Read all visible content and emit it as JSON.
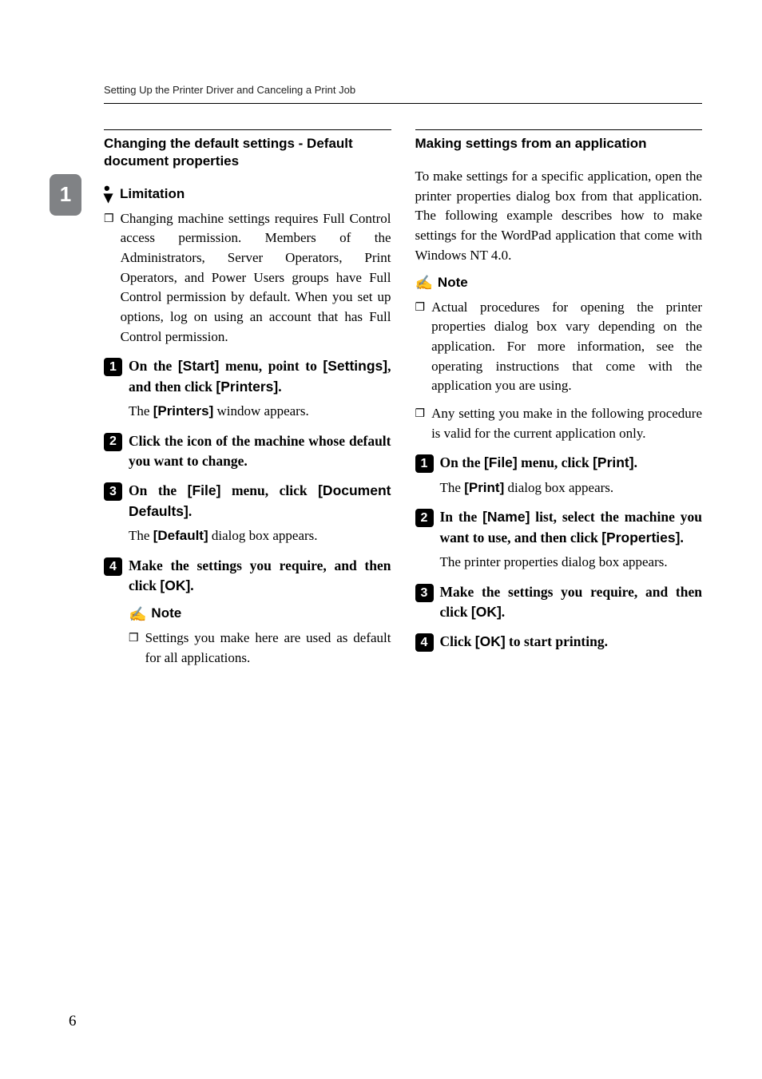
{
  "runningHead": "Setting Up the Printer Driver and Canceling a Print Job",
  "chapterTab": "1",
  "pageNumber": "6",
  "left": {
    "sectionHead": "Changing the default settings - Default document properties",
    "limitation": {
      "label": "Limitation",
      "bullet": "Changing machine settings requires Full Control access permission. Members of the Administrators, Server Operators, Print Operators, and Power Users groups have Full Control permission by default. When you set up options, log on using an account that has Full Control permission."
    },
    "steps": [
      {
        "num": "1",
        "pre1": "On the ",
        "ui1": "[Start]",
        "mid1": " menu, point to ",
        "ui2": "[Settings]",
        "mid2": ", and then click ",
        "ui3": "[Printers]",
        "post": ".",
        "resultPre": "The ",
        "resultUi": "[Printers]",
        "resultPost": " window appears."
      },
      {
        "num": "2",
        "text": "Click the icon of the machine whose default you want to change."
      },
      {
        "num": "3",
        "pre1": "On the ",
        "ui1": "[File]",
        "mid1": " menu, click ",
        "ui2": "[Document Defaults]",
        "post": ".",
        "resultPre": "The ",
        "resultUi": "[Default]",
        "resultPost": " dialog box appears."
      },
      {
        "num": "4",
        "pre1": "Make the settings you require, and then click ",
        "ui1": "[OK]",
        "post": "."
      }
    ],
    "note": {
      "label": "Note",
      "bullet": "Settings you make here are used as default for all applications."
    }
  },
  "right": {
    "sectionHead": "Making settings from an application",
    "intro": "To make settings for a specific application, open the printer properties dialog box from that application. The following example describes how to make settings for the WordPad application that come with Windows NT 4.0.",
    "note": {
      "label": "Note",
      "bullets": [
        "Actual procedures for opening the printer properties dialog box vary depending on the application. For more information, see the operating instructions that come with the application you are using.",
        "Any setting you make in the following procedure is valid for the current application only."
      ]
    },
    "steps": [
      {
        "num": "1",
        "pre1": "On the ",
        "ui1": "[File]",
        "mid1": " menu, click ",
        "ui2": "[Print]",
        "post": ".",
        "resultPre": "The ",
        "resultUi": "[Print]",
        "resultPost": " dialog box appears."
      },
      {
        "num": "2",
        "pre1": "In the ",
        "ui1": "[Name]",
        "mid1": " list, select the machine you want to use, and then click ",
        "ui2": "[Properties]",
        "post": ".",
        "resultPlain": "The printer properties dialog box appears."
      },
      {
        "num": "3",
        "pre1": "Make the settings you require, and then click ",
        "ui1": "[OK]",
        "post": "."
      },
      {
        "num": "4",
        "pre1": "Click ",
        "ui1": "[OK]",
        "mid1": " to start printing."
      }
    ]
  }
}
